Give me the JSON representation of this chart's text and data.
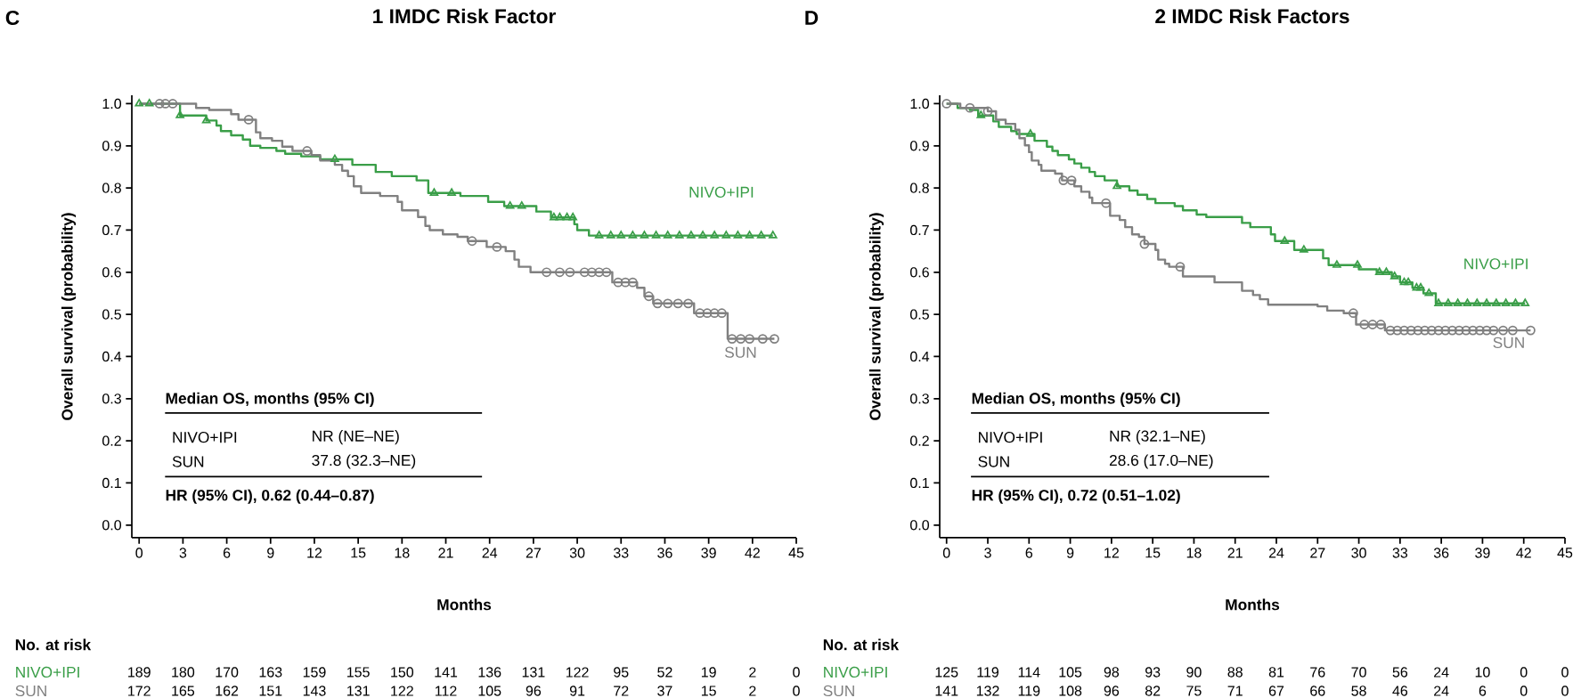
{
  "chart_data": [
    {
      "type": "step",
      "title": "1 IMDC Risk Factor",
      "xlabel": "Months",
      "ylabel": "Overall survival (probability)",
      "xlim": [
        -0.5,
        45
      ],
      "ylim": [
        -0.03,
        1.02
      ],
      "xticks": [
        0,
        3,
        6,
        9,
        12,
        15,
        18,
        21,
        24,
        27,
        30,
        33,
        36,
        39,
        42,
        45
      ],
      "yticks": [
        {
          "value": 0,
          "label": "0.0"
        },
        {
          "value": 0.1,
          "label": "0.1"
        },
        {
          "value": 0.2,
          "label": "0.2"
        },
        {
          "value": 0.3,
          "label": "0.3"
        },
        {
          "value": 0.4,
          "label": "0.4"
        },
        {
          "value": 0.5,
          "label": "0.5"
        },
        {
          "value": 0.6,
          "label": "0.6"
        },
        {
          "value": 0.7,
          "label": "0.7"
        },
        {
          "value": 0.8,
          "label": "0.8"
        },
        {
          "value": 0.9,
          "label": "0.9"
        },
        {
          "value": 1,
          "label": "1.0"
        }
      ],
      "series": [
        {
          "name": "NIVO+IPI",
          "color": "#3a9e48",
          "x": [
            0,
            2.8,
            4.6,
            5.3,
            5.6,
            6.3,
            7.1,
            7.6,
            8.3,
            9.4,
            10,
            11.1,
            12.4,
            14.6,
            16.2,
            17.3,
            19.0,
            19.8,
            22.0,
            23.9,
            25.0,
            27.2,
            28.2,
            29.8,
            30.0,
            30.8,
            43.4
          ],
          "values": [
            1,
            0.972,
            0.96,
            0.948,
            0.935,
            0.925,
            0.915,
            0.9,
            0.895,
            0.888,
            0.881,
            0.875,
            0.868,
            0.855,
            0.838,
            0.828,
            0.818,
            0.788,
            0.781,
            0.767,
            0.757,
            0.744,
            0.73,
            0.714,
            0.7,
            0.687,
            0.687
          ]
        },
        {
          "name": "SUN",
          "color": "#808080",
          "x": [
            0,
            3.9,
            4.8,
            6.3,
            6.8,
            8.0,
            8.3,
            9.1,
            9.8,
            10.5,
            11.8,
            12.4,
            13.4,
            13.9,
            14.3,
            14.7,
            15.2,
            16.5,
            17.7,
            18.0,
            19.1,
            19.6,
            19.9,
            20.8,
            21.8,
            22.5,
            23.8,
            25.1,
            25.7,
            26.0,
            26.8,
            32.4,
            34.1,
            34.6,
            35.2,
            38.0,
            40.3,
            43.5
          ],
          "values": [
            1,
            0.99,
            0.985,
            0.975,
            0.962,
            0.932,
            0.918,
            0.912,
            0.898,
            0.888,
            0.878,
            0.865,
            0.855,
            0.841,
            0.828,
            0.804,
            0.788,
            0.781,
            0.767,
            0.747,
            0.731,
            0.71,
            0.7,
            0.69,
            0.684,
            0.674,
            0.66,
            0.65,
            0.63,
            0.613,
            0.6,
            0.576,
            0.563,
            0.543,
            0.526,
            0.503,
            0.442,
            0.442
          ]
        },
        {
          "type": "scatter",
          "color": "#3a9e48",
          "marker": "triangle",
          "x": [
            0,
            0.7,
            2.8,
            4.6,
            13.4,
            20.2,
            21.4,
            25.4,
            26.2,
            28.4,
            28.8,
            29.3,
            29.7,
            31.5,
            32.3,
            33.0,
            33.8,
            34.6,
            35.4,
            36.2,
            37.0,
            37.8,
            38.6,
            39.4,
            40.2,
            41.0,
            41.8,
            42.6,
            43.4
          ],
          "values": [
            1,
            1,
            0.972,
            0.96,
            0.868,
            0.788,
            0.788,
            0.757,
            0.757,
            0.73,
            0.73,
            0.73,
            0.73,
            0.687,
            0.687,
            0.687,
            0.687,
            0.687,
            0.687,
            0.687,
            0.687,
            0.687,
            0.687,
            0.687,
            0.687,
            0.687,
            0.687,
            0.687,
            0.687
          ]
        },
        {
          "type": "scatter",
          "color": "#808080",
          "marker": "circle",
          "x": [
            1.4,
            1.8,
            2.3,
            7.5,
            11.5,
            22.8,
            24.5,
            27.9,
            28.8,
            29.5,
            30.5,
            31.0,
            31.5,
            32.0,
            32.8,
            33.3,
            33.8,
            34.9,
            35.5,
            36.2,
            36.9,
            37.6,
            38.4,
            38.9,
            39.4,
            39.9,
            40.6,
            41.2,
            41.8,
            42.7,
            43.5
          ],
          "values": [
            1,
            1,
            1,
            0.962,
            0.888,
            0.674,
            0.66,
            0.6,
            0.6,
            0.6,
            0.6,
            0.6,
            0.6,
            0.6,
            0.576,
            0.576,
            0.576,
            0.543,
            0.526,
            0.526,
            0.526,
            0.526,
            0.503,
            0.503,
            0.503,
            0.503,
            0.442,
            0.442,
            0.442,
            0.442,
            0.442
          ]
        }
      ],
      "annotations": [
        "C",
        "Median OS, months (95% CI)",
        "NIVO+IPI",
        "NR (NE–NE)",
        "SUN",
        "37.8 (32.3–NE)",
        "HR (95% CI), 0.62 (0.44–0.87)",
        "No. at risk",
        "NIVO+IPI",
        "SUN",
        "189",
        "180",
        "170",
        "163",
        "159",
        "155",
        "150",
        "141",
        "136",
        "131",
        "122",
        "95",
        "52",
        "19",
        "2",
        "0",
        "172",
        "165",
        "162",
        "151",
        "143",
        "131",
        "122",
        "112",
        "105",
        "96",
        "91",
        "72",
        "37",
        "15",
        "2",
        "0"
      ]
    },
    {
      "type": "step",
      "title": "2 IMDC Risk Factors",
      "xlabel": "Months",
      "ylabel": "Overall survival (probability)",
      "xlim": [
        -0.5,
        45
      ],
      "ylim": [
        -0.03,
        1.02
      ],
      "xticks": [
        0,
        3,
        6,
        9,
        12,
        15,
        18,
        21,
        24,
        27,
        30,
        33,
        36,
        39,
        42,
        45
      ],
      "yticks": [
        {
          "value": 0,
          "label": "0.0"
        },
        {
          "value": 0.1,
          "label": "0.1"
        },
        {
          "value": 0.2,
          "label": "0.2"
        },
        {
          "value": 0.3,
          "label": "0.3"
        },
        {
          "value": 0.4,
          "label": "0.4"
        },
        {
          "value": 0.5,
          "label": "0.5"
        },
        {
          "value": 0.6,
          "label": "0.6"
        },
        {
          "value": 0.7,
          "label": "0.7"
        },
        {
          "value": 0.8,
          "label": "0.8"
        },
        {
          "value": 0.9,
          "label": "0.9"
        },
        {
          "value": 1,
          "label": "1.0"
        }
      ],
      "series": [
        {
          "name": "NIVO+IPI",
          "color": "#3a9e48",
          "x": [
            0,
            0.8,
            1.7,
            2.3,
            3.4,
            3.8,
            4.7,
            5.1,
            6.4,
            7.3,
            7.7,
            8.1,
            8.9,
            9.3,
            9.8,
            10.4,
            10.8,
            11.5,
            12.4,
            13.3,
            13.9,
            14.6,
            15.2,
            16.6,
            17.2,
            18.2,
            18.9,
            21.5,
            22.1,
            23.6,
            23.9,
            25.3,
            27.4,
            27.8,
            30.0,
            31.3,
            32.4,
            33.0,
            33.9,
            34.7,
            35.6,
            42.1
          ],
          "values": [
            1,
            0.99,
            0.985,
            0.972,
            0.958,
            0.945,
            0.935,
            0.928,
            0.912,
            0.898,
            0.888,
            0.878,
            0.868,
            0.858,
            0.848,
            0.838,
            0.828,
            0.818,
            0.804,
            0.794,
            0.784,
            0.774,
            0.764,
            0.757,
            0.747,
            0.737,
            0.731,
            0.717,
            0.707,
            0.69,
            0.674,
            0.653,
            0.633,
            0.617,
            0.607,
            0.6,
            0.59,
            0.576,
            0.563,
            0.55,
            0.526,
            0.526
          ]
        },
        {
          "name": "SUN",
          "color": "#808080",
          "x": [
            0,
            1.0,
            3.0,
            3.6,
            4.3,
            5.0,
            5.3,
            5.7,
            6.0,
            6.2,
            6.7,
            6.9,
            7.9,
            8.4,
            9.3,
            9.8,
            10.4,
            10.6,
            11.9,
            12.6,
            13.0,
            13.5,
            14.0,
            14.4,
            15.2,
            15.4,
            15.9,
            16.2,
            17.2,
            19.5,
            21.5,
            22.3,
            22.8,
            23.4,
            27.0,
            27.7,
            28.9,
            29.8,
            31.9,
            42.5
          ],
          "values": [
            1,
            0.99,
            0.982,
            0.962,
            0.952,
            0.938,
            0.918,
            0.901,
            0.885,
            0.865,
            0.855,
            0.841,
            0.834,
            0.818,
            0.804,
            0.791,
            0.777,
            0.764,
            0.734,
            0.724,
            0.707,
            0.69,
            0.684,
            0.667,
            0.653,
            0.63,
            0.62,
            0.613,
            0.59,
            0.576,
            0.556,
            0.546,
            0.536,
            0.523,
            0.519,
            0.509,
            0.503,
            0.476,
            0.462,
            0.462
          ]
        },
        {
          "type": "scatter",
          "color": "#3a9e48",
          "marker": "triangle",
          "x": [
            2.5,
            6.1,
            12.4,
            24.6,
            26.0,
            28.4,
            29.9,
            31.5,
            32.0,
            32.6,
            33.3,
            33.6,
            34.2,
            34.5,
            35.1,
            35.8,
            36.5,
            37.2,
            37.9,
            38.6,
            39.3,
            40.0,
            40.7,
            41.4,
            42.1
          ],
          "values": [
            0.972,
            0.928,
            0.804,
            0.674,
            0.653,
            0.617,
            0.617,
            0.6,
            0.6,
            0.59,
            0.576,
            0.576,
            0.563,
            0.563,
            0.55,
            0.526,
            0.526,
            0.526,
            0.526,
            0.526,
            0.526,
            0.526,
            0.526,
            0.526,
            0.526
          ]
        },
        {
          "type": "scatter",
          "color": "#808080",
          "marker": "circle",
          "x": [
            0,
            1.7,
            3.0,
            8.5,
            9.1,
            11.6,
            14.4,
            17.0,
            29.6,
            30.4,
            31.0,
            31.6,
            32.3,
            32.8,
            33.3,
            33.8,
            34.3,
            34.8,
            35.3,
            35.8,
            36.3,
            36.8,
            37.3,
            37.8,
            38.3,
            38.8,
            39.3,
            39.8,
            40.5,
            41.2,
            42.5
          ],
          "values": [
            1,
            0.99,
            0.982,
            0.818,
            0.818,
            0.764,
            0.667,
            0.613,
            0.503,
            0.476,
            0.476,
            0.476,
            0.462,
            0.462,
            0.462,
            0.462,
            0.462,
            0.462,
            0.462,
            0.462,
            0.462,
            0.462,
            0.462,
            0.462,
            0.462,
            0.462,
            0.462,
            0.462,
            0.462,
            0.462,
            0.462
          ]
        }
      ],
      "annotations": [
        "D",
        "Median OS, months (95% CI)",
        "NIVO+IPI",
        "NR (32.1–NE)",
        "SUN",
        "28.6 (17.0–NE)",
        "HR (95% CI), 0.72 (0.51–1.02)",
        "No. at risk",
        "NIVO+IPI",
        "SUN",
        "125",
        "119",
        "114",
        "105",
        "98",
        "93",
        "90",
        "88",
        "81",
        "76",
        "70",
        "56",
        "24",
        "10",
        "0",
        "0",
        "141",
        "132",
        "119",
        "108",
        "96",
        "82",
        "75",
        "71",
        "67",
        "66",
        "58",
        "46",
        "24",
        "6",
        "0",
        "0"
      ]
    }
  ]
}
